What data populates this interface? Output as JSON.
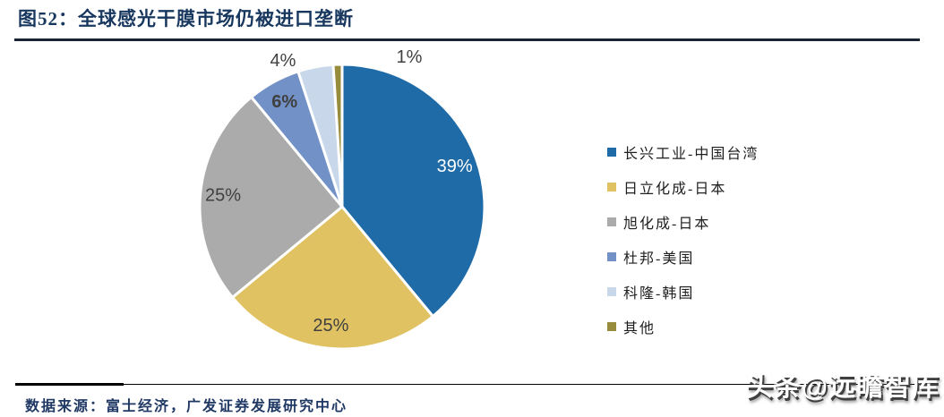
{
  "header": {
    "title": "图52：全球感光干膜市场仍被进口垄断",
    "title_color": "#17375E",
    "rule_color": "#1A2433"
  },
  "footer": {
    "source": "数据来源：富士经济，广发证券发展研究中心",
    "source_color": "#1F3864",
    "watermark": "头条@远瞻智库"
  },
  "chart_data": {
    "type": "pie",
    "title": "全球感光干膜市场仍被进口垄断",
    "categories": [
      "长兴工业-中国台湾",
      "日立化成-日本",
      "旭化成-日本",
      "杜邦-美国",
      "科隆-韩国",
      "其他"
    ],
    "values": [
      39,
      25,
      25,
      6,
      4,
      1
    ],
    "labels": [
      "39%",
      "25%",
      "25%",
      "6%",
      "4%",
      "1%"
    ],
    "colors": [
      "#1E6BA8",
      "#E0C263",
      "#ABABAB",
      "#7291C7",
      "#C8D8EA",
      "#978C3B"
    ],
    "label_text_colors": [
      "#FFFFFF",
      "#404040",
      "#404040",
      "#404040",
      "#404040",
      "#404040"
    ],
    "label_inside": [
      true,
      true,
      true,
      true,
      false,
      false
    ],
    "label_bold": [
      false,
      false,
      false,
      true,
      false,
      false
    ],
    "start_angle_deg": 0,
    "direction": "clockwise",
    "slice_gap_color": "#FFFFFF",
    "legend_position": "right",
    "unit": "percent"
  }
}
